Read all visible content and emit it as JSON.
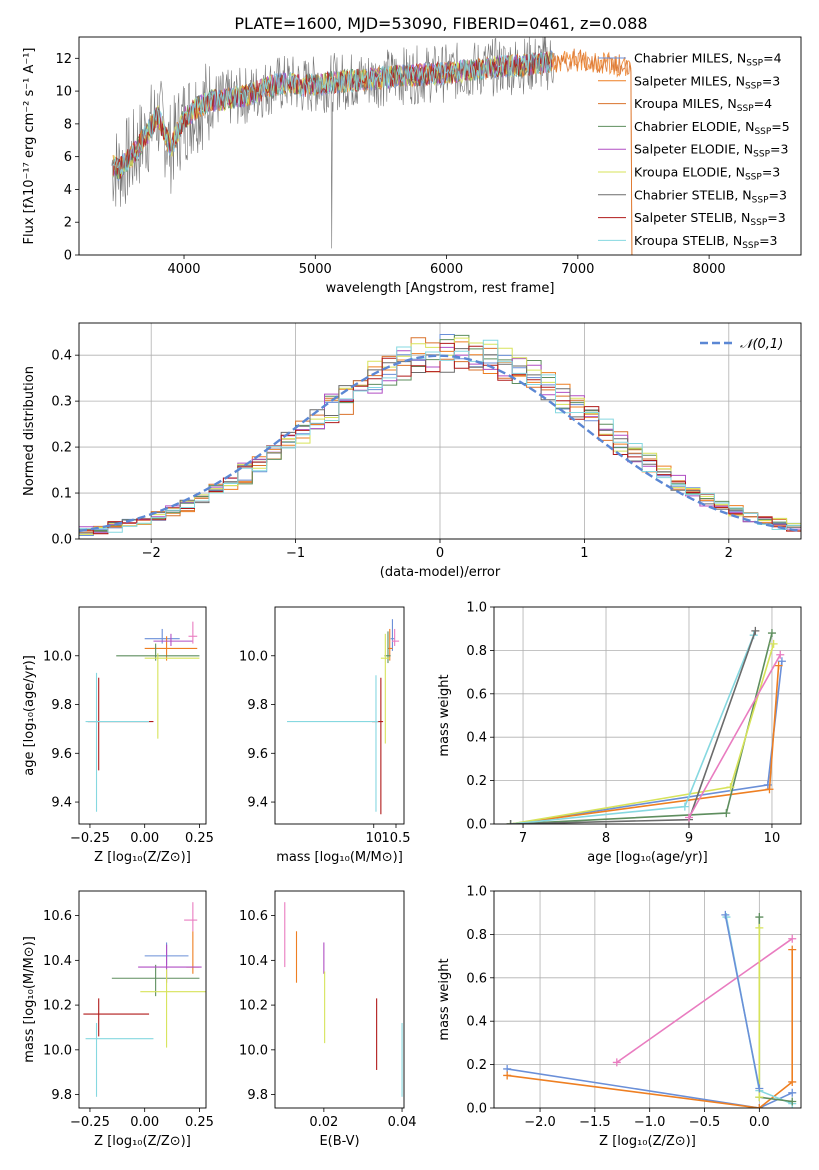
{
  "figure_title": "PLATE=1600, MJD=53090, FIBERID=0461, z=0.088",
  "colors": [
    "#6a8fd8",
    "#ee7f22",
    "#f07f25",
    "#5e8e5e",
    "#b04ec4",
    "#d7e35a",
    "#777777",
    "#b01a1a",
    "#86d8e0"
  ],
  "models": [
    {
      "name": "Chabrier MILES",
      "nssp": "4",
      "color": "#6a8fd8"
    },
    {
      "name": "Salpeter MILES",
      "nssp": "3",
      "color": "#ee7f22"
    },
    {
      "name": "Kroupa MILES",
      "nssp": "4",
      "color": "#d9722b"
    },
    {
      "name": "Chabrier ELODIE",
      "nssp": "5",
      "color": "#5e8e5e"
    },
    {
      "name": "Salpeter ELODIE",
      "nssp": "3",
      "color": "#b04ec4"
    },
    {
      "name": "Kroupa ELODIE",
      "nssp": "3",
      "color": "#d7e35a"
    },
    {
      "name": "Chabrier STELIB",
      "nssp": "3",
      "color": "#6b6b6b"
    },
    {
      "name": "Salpeter STELIB",
      "nssp": "3",
      "color": "#b01a1a"
    },
    {
      "name": "Kroupa STELIB",
      "nssp": "3",
      "color": "#86d8e0"
    }
  ],
  "chart_data": [
    {
      "id": "spectrum",
      "type": "line",
      "xlabel": "wavelength [Angstrom, rest frame]",
      "ylabel": "Flux [fλ10⁻¹⁷ erg cm⁻² s⁻¹ A⁻¹]",
      "xlim": [
        3200,
        8700
      ],
      "ylim": [
        0,
        13.3
      ],
      "xticks": [
        4000,
        5000,
        6000,
        7000,
        8000
      ],
      "yticks": [
        0,
        2,
        4,
        6,
        8,
        10,
        12
      ],
      "grid": false,
      "legend": "right",
      "continuum": {
        "x": [
          3450,
          3500,
          3600,
          3700,
          3800,
          3900,
          3950,
          4000,
          4100,
          4200,
          4300,
          4400,
          4500,
          4600,
          4700,
          4800,
          4900,
          5000,
          5200,
          5400,
          5600,
          5800,
          6000,
          6200,
          6400,
          6600,
          6800,
          7000,
          7200,
          7400
        ],
        "y": [
          5.5,
          5.2,
          6.0,
          7.2,
          8.5,
          6.5,
          7.5,
          8.3,
          9.0,
          9.4,
          9.5,
          9.6,
          9.8,
          10.1,
          10.4,
          10.5,
          10.3,
          10.4,
          10.6,
          10.7,
          10.9,
          11.0,
          11.1,
          11.3,
          11.5,
          11.6,
          11.8,
          11.9,
          11.7,
          11.5
        ]
      }
    },
    {
      "id": "residuals",
      "type": "line",
      "xlabel": "(data-model)/error",
      "ylabel": "Normed distribution",
      "xlim": [
        -2.5,
        2.5
      ],
      "ylim": [
        0,
        0.47
      ],
      "xticks": [
        -2,
        -1,
        0,
        1,
        2
      ],
      "yticks": [
        0.0,
        0.1,
        0.2,
        0.3,
        0.4
      ],
      "grid": true,
      "legend": "top-right",
      "reference_label": "𝒩(0,1)",
      "reference_color": "#5b87d4"
    },
    {
      "id": "age_vs_Z",
      "type": "scatter",
      "xlabel": "Z [log₁₀(Z/Z⊙)]",
      "ylabel": "age  [log₁₀(age/yr)]",
      "xlim": [
        -0.3,
        0.28
      ],
      "ylim": [
        9.31,
        10.2
      ],
      "xticks": [
        -0.25,
        0.0,
        0.25
      ],
      "yticks": [
        9.4,
        9.6,
        9.8,
        10.0
      ],
      "points": [
        {
          "x": 0.08,
          "y": 10.07,
          "xerr": [
            0.08,
            0.08
          ],
          "yerr": [
            0.02,
            0.04
          ],
          "color": "#6a8fd8"
        },
        {
          "x": 0.1,
          "y": 10.03,
          "xerr": [
            0.1,
            0.14
          ],
          "yerr": [
            0.05,
            0.05
          ],
          "color": "#ee7f22"
        },
        {
          "x": 0.05,
          "y": 10.0,
          "xerr": [
            0.18,
            0.2
          ],
          "yerr": [
            0.02,
            0.05
          ],
          "color": "#5e8e5e"
        },
        {
          "x": 0.12,
          "y": 10.06,
          "xerr": [
            0.08,
            0.1
          ],
          "yerr": [
            0.02,
            0.03
          ],
          "color": "#b04ec4"
        },
        {
          "x": 0.06,
          "y": 9.99,
          "xerr": [
            0.06,
            0.19
          ],
          "yerr": [
            0.33,
            0.02
          ],
          "color": "#d7e35a"
        },
        {
          "x": -0.21,
          "y": 9.73,
          "xerr": [
            0.05,
            0.25
          ],
          "yerr": [
            0.2,
            0.18
          ],
          "color": "#b01a1a"
        },
        {
          "x": -0.22,
          "y": 9.73,
          "xerr": [
            0.05,
            0.24
          ],
          "yerr": [
            0.37,
            0.2
          ],
          "color": "#86d8e0"
        },
        {
          "x": 0.22,
          "y": 10.08,
          "xerr": [
            0.02,
            0.02
          ],
          "yerr": [
            0.03,
            0.06
          ],
          "color": "#e97cc0"
        }
      ]
    },
    {
      "id": "age_vs_mass",
      "type": "scatter",
      "xlabel": "mass [log₁₀(M/M⊙)]",
      "ylabel": "",
      "xlim": [
        7.78,
        10.68
      ],
      "ylim": [
        9.31,
        10.2
      ],
      "xticks": [
        10,
        10.5
      ],
      "yticks": [
        9.4,
        9.6,
        9.8,
        10.0
      ],
      "points": [
        {
          "x": 10.42,
          "y": 10.07,
          "xerr": [
            0.04,
            0.05
          ],
          "yerr": [
            0.05,
            0.08
          ],
          "color": "#6a8fd8"
        },
        {
          "x": 10.36,
          "y": 10.03,
          "xerr": [
            0.05,
            0.06
          ],
          "yerr": [
            0.05,
            0.08
          ],
          "color": "#ee7f22"
        },
        {
          "x": 10.32,
          "y": 10.0,
          "xerr": [
            0.08,
            0.06
          ],
          "yerr": [
            0.03,
            0.1
          ],
          "color": "#5e8e5e"
        },
        {
          "x": 10.47,
          "y": 10.06,
          "xerr": [
            0.06,
            0.1
          ],
          "yerr": [
            0.02,
            0.05
          ],
          "color": "#e97cc0"
        },
        {
          "x": 10.26,
          "y": 9.99,
          "xerr": [
            0.1,
            0.1
          ],
          "yerr": [
            0.35,
            0.1
          ],
          "color": "#d7e35a"
        },
        {
          "x": 10.16,
          "y": 9.73,
          "xerr": [
            0.2,
            0.05
          ],
          "yerr": [
            0.38,
            0.18
          ],
          "color": "#b01a1a"
        },
        {
          "x": 10.05,
          "y": 9.73,
          "xerr": [
            2.0,
            0.05
          ],
          "yerr": [
            0.37,
            0.19
          ],
          "color": "#86d8e0"
        }
      ]
    },
    {
      "id": "weight_vs_age",
      "type": "line",
      "xlabel": "age  [log₁₀(age/yr)]",
      "ylabel": "mass weight",
      "xlim": [
        6.65,
        10.35
      ],
      "ylim": [
        0,
        1.0
      ],
      "xticks": [
        7,
        8,
        9,
        10
      ],
      "yticks": [
        0.0,
        0.2,
        0.4,
        0.6,
        0.8,
        1.0
      ],
      "grid": true,
      "series": [
        {
          "color": "#6a8fd8",
          "x": [
            6.85,
            9.95,
            10.12
          ],
          "y": [
            0.0,
            0.18,
            0.75
          ]
        },
        {
          "color": "#ee7f22",
          "x": [
            6.85,
            9.97,
            10.08
          ],
          "y": [
            0.0,
            0.16,
            0.73
          ]
        },
        {
          "color": "#5e8e5e",
          "x": [
            6.85,
            9.45,
            10.0
          ],
          "y": [
            0.0,
            0.05,
            0.88
          ]
        },
        {
          "color": "#d7e35a",
          "x": [
            6.85,
            9.5,
            10.02
          ],
          "y": [
            0.0,
            0.17,
            0.83
          ]
        },
        {
          "color": "#86d8e0",
          "x": [
            6.85,
            8.95,
            9.78
          ],
          "y": [
            0.0,
            0.08,
            0.87
          ]
        },
        {
          "color": "#6b6b6b",
          "x": [
            6.85,
            9.0,
            9.8
          ],
          "y": [
            0.0,
            0.02,
            0.89
          ]
        },
        {
          "color": "#e97cc0",
          "x": [
            9.0,
            10.1
          ],
          "y": [
            0.03,
            0.78
          ]
        }
      ]
    },
    {
      "id": "mass_vs_Z",
      "type": "scatter",
      "xlabel": "Z [log₁₀(Z/Z⊙)]",
      "ylabel": "mass [log₁₀(M/M⊙)]",
      "xlim": [
        -0.3,
        0.28
      ],
      "ylim": [
        9.74,
        10.71
      ],
      "xticks": [
        -0.25,
        0.0,
        0.25
      ],
      "yticks": [
        9.8,
        10.0,
        10.2,
        10.4,
        10.6
      ],
      "points": [
        {
          "x": 0.1,
          "y": 10.42,
          "xerr": [
            0.1,
            0.1
          ],
          "yerr": [
            0.04,
            0.06
          ],
          "color": "#6a8fd8"
        },
        {
          "x": 0.22,
          "y": 10.37,
          "xerr": [
            0.03,
            0.03
          ],
          "yerr": [
            0.03,
            0.16
          ],
          "color": "#ee7f22"
        },
        {
          "x": 0.05,
          "y": 10.32,
          "xerr": [
            0.2,
            0.2
          ],
          "yerr": [
            0.08,
            0.06
          ],
          "color": "#5e8e5e"
        },
        {
          "x": 0.1,
          "y": 10.37,
          "xerr": [
            0.13,
            0.16
          ],
          "yerr": [
            0.07,
            0.1
          ],
          "color": "#b04ec4"
        },
        {
          "x": 0.1,
          "y": 10.26,
          "xerr": [
            0.12,
            0.18
          ],
          "yerr": [
            0.25,
            0.1
          ],
          "color": "#d7e35a"
        },
        {
          "x": -0.21,
          "y": 10.16,
          "xerr": [
            0.07,
            0.23
          ],
          "yerr": [
            0.1,
            0.07
          ],
          "color": "#b01a1a"
        },
        {
          "x": -0.22,
          "y": 10.05,
          "xerr": [
            0.05,
            0.26
          ],
          "yerr": [
            0.26,
            0.07
          ],
          "color": "#86d8e0"
        },
        {
          "x": 0.22,
          "y": 10.58,
          "xerr": [
            0.04,
            0.02
          ],
          "yerr": [
            0.05,
            0.08
          ],
          "color": "#e97cc0"
        }
      ]
    },
    {
      "id": "mass_vs_ebv",
      "type": "scatter",
      "xlabel": "E(B-V)",
      "ylabel": "",
      "xlim": [
        0.0075,
        0.0405
      ],
      "ylim": [
        9.74,
        10.71
      ],
      "xticks": [
        0.02,
        0.04
      ],
      "yticks": [
        9.8,
        10.0,
        10.2,
        10.4,
        10.6
      ],
      "points": [
        {
          "x": 0.01,
          "y": 10.52,
          "yerr": [
            0.15,
            0.14
          ],
          "color": "#e97cc0"
        },
        {
          "x": 0.013,
          "y": 10.43,
          "yerr": [
            0.13,
            0.1
          ],
          "color": "#ee7f22"
        },
        {
          "x": 0.02,
          "y": 10.41,
          "yerr": [
            0.07,
            0.07
          ],
          "color": "#b04ec4"
        },
        {
          "x": 0.0202,
          "y": 10.19,
          "yerr": [
            0.16,
            0.16
          ],
          "color": "#d7e35a"
        },
        {
          "x": 0.0335,
          "y": 10.07,
          "yerr": [
            0.16,
            0.16
          ],
          "color": "#b01a1a"
        },
        {
          "x": 0.04,
          "y": 9.95,
          "yerr": [
            0.16,
            0.17
          ],
          "color": "#86d8e0"
        }
      ]
    },
    {
      "id": "weight_vs_Z",
      "type": "line",
      "xlabel": "Z [log₁₀(Z/Z⊙)]",
      "ylabel": "mass weight",
      "xlim": [
        -2.42,
        0.38
      ],
      "ylim": [
        0,
        1.0
      ],
      "xticks": [
        -2.0,
        -1.5,
        -1.0,
        -0.5,
        0.0
      ],
      "yticks": [
        0.0,
        0.2,
        0.4,
        0.6,
        0.8,
        1.0
      ],
      "grid": true,
      "series": [
        {
          "color": "#6a8fd8",
          "x": [
            -2.3,
            0.0,
            0.3
          ],
          "y": [
            0.18,
            0.0,
            0.07
          ]
        },
        {
          "color": "#ee7f22",
          "x": [
            -2.3,
            0.0,
            0.3,
            0.3
          ],
          "y": [
            0.15,
            0.0,
            0.12,
            0.73
          ]
        },
        {
          "color": "#e97cc0",
          "x": [
            -1.3,
            0.3
          ],
          "y": [
            0.21,
            0.78
          ]
        },
        {
          "color": "#86d8e0",
          "x": [
            -0.3,
            0.0,
            0.3
          ],
          "y": [
            0.88,
            0.08,
            0.02
          ]
        },
        {
          "color": "#5e8e5e",
          "x": [
            0.0,
            0.0,
            0.3
          ],
          "y": [
            0.88,
            0.05,
            0.03
          ]
        },
        {
          "color": "#d7e35a",
          "x": [
            0.0,
            0.0
          ],
          "y": [
            0.83,
            0.05
          ]
        },
        {
          "color": "#6a8fd8",
          "x": [
            -0.31,
            0.0
          ],
          "y": [
            0.89,
            0.09
          ]
        }
      ]
    }
  ]
}
